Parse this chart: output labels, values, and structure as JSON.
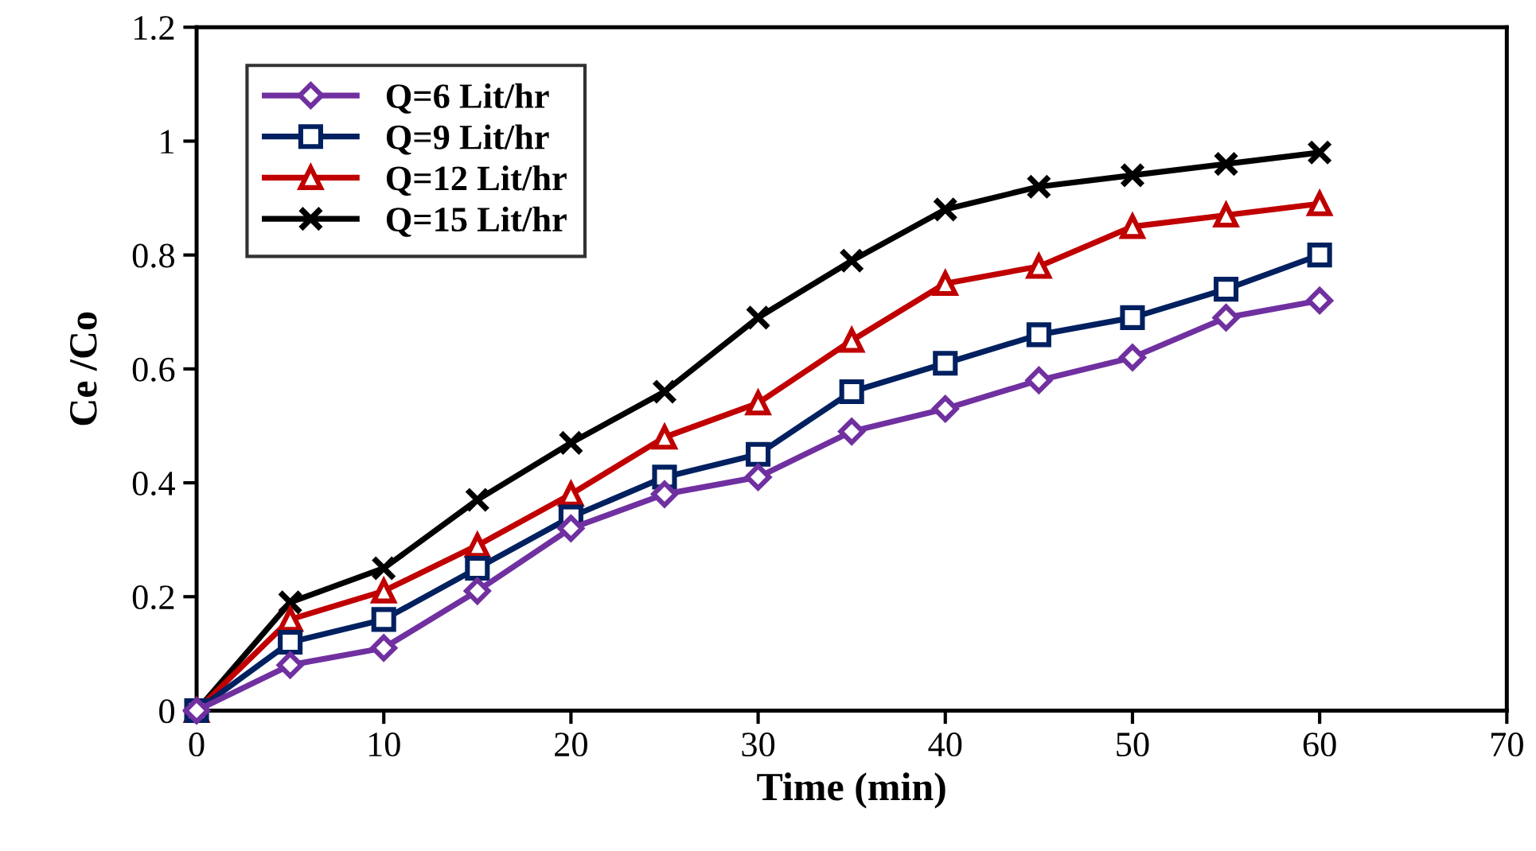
{
  "chart_data": {
    "type": "line",
    "xlabel": "Time (min)",
    "ylabel": "Ce /Co",
    "x": [
      0,
      5,
      10,
      15,
      20,
      25,
      30,
      35,
      40,
      45,
      50,
      55,
      60
    ],
    "series": [
      {
        "name": "Q=6 Lit/hr",
        "color": "#7030a0",
        "marker": "diamond",
        "values": [
          0,
          0.08,
          0.11,
          0.21,
          0.32,
          0.38,
          0.41,
          0.49,
          0.53,
          0.58,
          0.62,
          0.69,
          0.72
        ]
      },
      {
        "name": "Q=9 Lit/hr",
        "color": "#002060",
        "marker": "square",
        "values": [
          0,
          0.12,
          0.16,
          0.25,
          0.34,
          0.41,
          0.45,
          0.56,
          0.61,
          0.66,
          0.69,
          0.74,
          0.8
        ]
      },
      {
        "name": "Q=12 Lit/hr",
        "color": "#c00000",
        "marker": "triangle",
        "values": [
          0,
          0.16,
          0.21,
          0.29,
          0.38,
          0.48,
          0.54,
          0.65,
          0.75,
          0.78,
          0.85,
          0.87,
          0.89
        ]
      },
      {
        "name": "Q=15 Lit/hr",
        "color": "#000000",
        "marker": "cross",
        "values": [
          0,
          0.19,
          0.25,
          0.37,
          0.47,
          0.56,
          0.69,
          0.79,
          0.88,
          0.92,
          0.94,
          0.96,
          0.98
        ]
      }
    ],
    "xlim": [
      0,
      70
    ],
    "xticks": [
      0,
      10,
      20,
      30,
      40,
      50,
      60,
      70
    ],
    "ylim": [
      0,
      1.2
    ],
    "yticks": [
      0,
      0.2,
      0.4,
      0.6,
      0.8,
      1,
      1.2
    ],
    "grid": false,
    "legend": "top left",
    "line_style": "solid"
  }
}
